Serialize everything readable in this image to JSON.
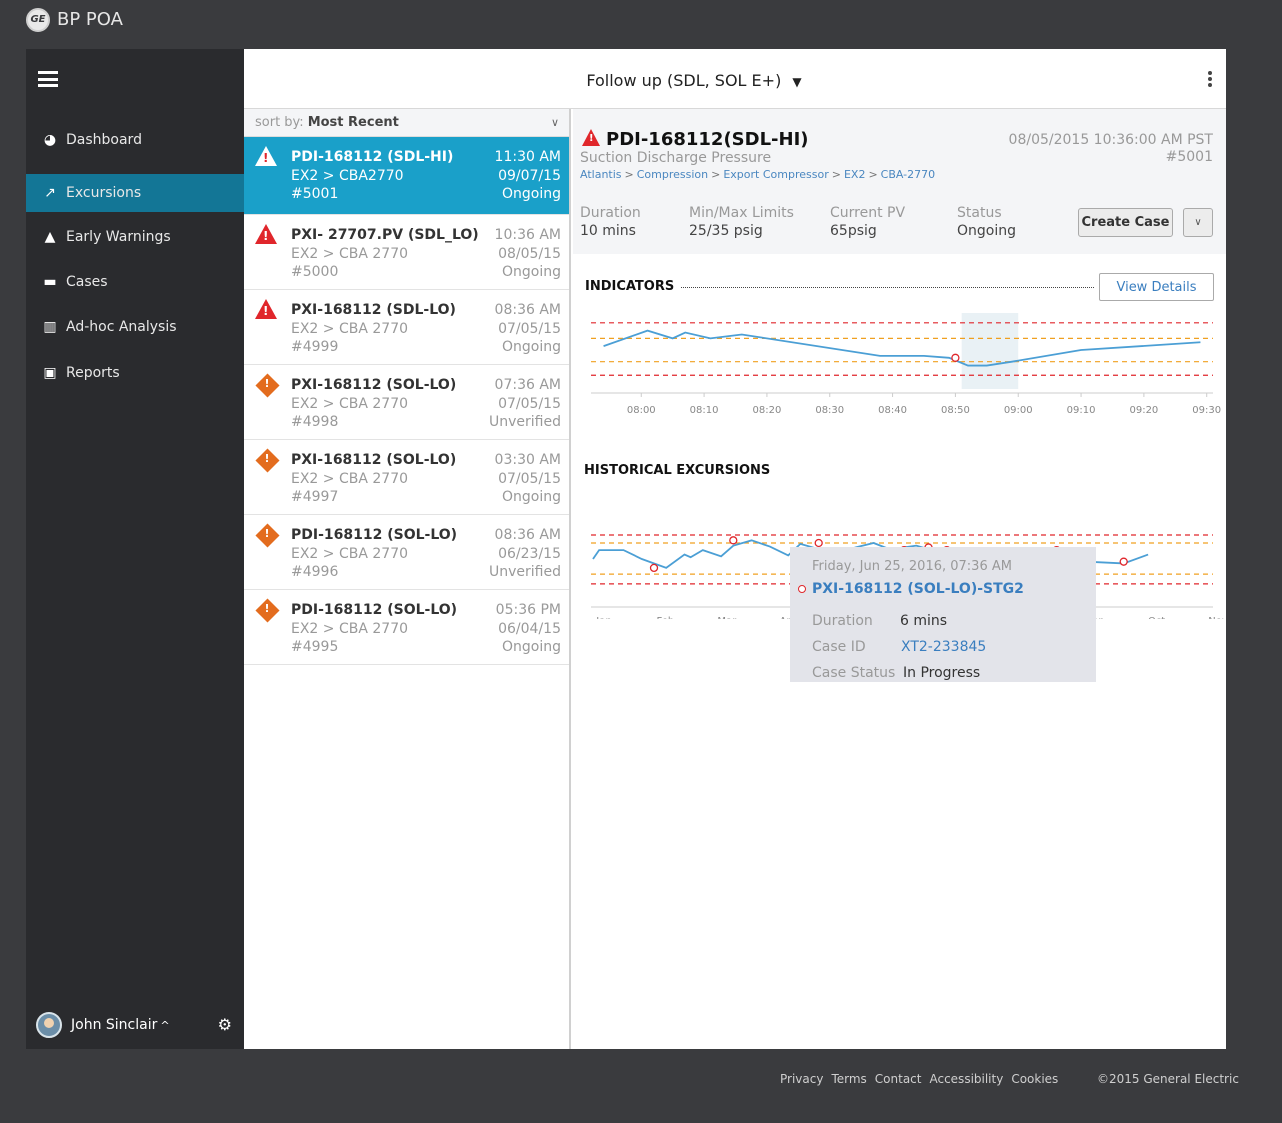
{
  "app": {
    "title": "BP POA",
    "logo_text": "GE"
  },
  "sidebar": {
    "items": [
      {
        "label": "Dashboard",
        "icon": "dashboard-icon",
        "glyph": "◕",
        "active": false
      },
      {
        "label": "Excursions",
        "icon": "line-chart-icon",
        "glyph": "↗",
        "active": true
      },
      {
        "label": "Early Warnings",
        "icon": "warning-icon",
        "glyph": "▲",
        "active": false
      },
      {
        "label": "Cases",
        "icon": "briefcase-icon",
        "glyph": "▬",
        "active": false
      },
      {
        "label": "Ad-hoc Analysis",
        "icon": "bar-chart-icon",
        "glyph": "▥",
        "active": false
      },
      {
        "label": "Reports",
        "icon": "report-icon",
        "glyph": "▣",
        "active": false
      }
    ],
    "user": {
      "name": "John Sinclair",
      "caret": "^"
    }
  },
  "header": {
    "title": "Follow up (SDL, SOL E+)",
    "caret": "▼"
  },
  "list": {
    "sort_prefix": "sort by:",
    "sort_value": "Most Recent",
    "items": [
      {
        "title": "PDI-168112 (SDL-HI)",
        "path": "EX2 > CBA2770",
        "id": "#5001",
        "time": "11:30 AM",
        "date": "09/07/15",
        "status": "Ongoing",
        "severity": "high"
      },
      {
        "title": "PXI- 27707.PV (SDL_LO)",
        "path": "EX2 > CBA 2770",
        "id": "#5000",
        "time": "10:36 AM",
        "date": "08/05/15",
        "status": "Ongoing",
        "severity": "high"
      },
      {
        "title": "PXI-168112 (SDL-LO)",
        "path": "EX2 > CBA 2770",
        "id": "#4999",
        "time": "08:36 AM",
        "date": "07/05/15",
        "status": "Ongoing",
        "severity": "high"
      },
      {
        "title": "PXI-168112 (SOL-LO)",
        "path": "EX2 > CBA 2770",
        "id": "#4998",
        "time": "07:36 AM",
        "date": "07/05/15",
        "status": "Unverified",
        "severity": "medium"
      },
      {
        "title": "PXI-168112 (SOL-LO)",
        "path": "EX2 > CBA 2770",
        "id": "#4997",
        "time": "03:30 AM",
        "date": "07/05/15",
        "status": "Ongoing",
        "severity": "medium"
      },
      {
        "title": "PDI-168112 (SOL-LO)",
        "path": "EX2 > CBA 2770",
        "id": "#4996",
        "time": "08:36 AM",
        "date": "06/23/15",
        "status": "Unverified",
        "severity": "medium"
      },
      {
        "title": "PDI-168112 (SOL-LO)",
        "path": "EX2 > CBA 2770",
        "id": "#4995",
        "time": "05:36 PM",
        "date": "06/04/15",
        "status": "Ongoing",
        "severity": "medium"
      }
    ]
  },
  "detail": {
    "title": "PDI-168112(SDL-HI)",
    "subtitle": "Suction Discharge Pressure",
    "breadcrumb": [
      "Atlantis",
      "Compression",
      "Export Compressor",
      "EX2",
      "CBA-2770"
    ],
    "breadcrumb_sep": ">",
    "datetime": "08/05/2015 10:36:00 AM PST",
    "number": "#5001",
    "stats": [
      {
        "label": "Duration",
        "value": "10 mins"
      },
      {
        "label": "Min/Max Limits",
        "value": "25/35 psig"
      },
      {
        "label": "Current PV",
        "value": "65psig"
      },
      {
        "label": "Status",
        "value": "Ongoing"
      }
    ],
    "create_case_label": "Create Case",
    "indicators_title": "INDICATORS",
    "view_details_label": "View Details",
    "historical_title": "HISTORICAL EXCURSIONS"
  },
  "tooltip": {
    "date": "Friday, Jun 25, 2016, 07:36 AM",
    "title": "PXI-168112 (SOL-LO)-STG2",
    "duration_label": "Duration",
    "duration_value": "6 mins",
    "case_id_label": "Case ID",
    "case_id_value": "XT2-233845",
    "case_status_label": "Case Status",
    "case_status_value": "In Progress"
  },
  "chart_data": [
    {
      "type": "line",
      "title": "INDICATORS",
      "x": [
        "07:54",
        "08:01",
        "08:05",
        "08:07",
        "08:11",
        "08:16",
        "08:38",
        "08:45",
        "08:49",
        "08:52",
        "08:55",
        "08:59",
        "09:10",
        "09:29"
      ],
      "values": [
        60,
        68,
        64,
        67,
        64,
        66,
        55,
        55,
        54,
        50,
        50,
        52,
        58,
        62
      ],
      "xticks": [
        "08:00",
        "08:10",
        "08:20",
        "08:30",
        "08:40",
        "08:50",
        "09:00",
        "09:10",
        "09:20",
        "09:30"
      ],
      "xlim": [
        "07:52",
        "09:31"
      ],
      "ylim": [
        40,
        75
      ],
      "upper_limit": 72,
      "upper_warning": 64,
      "lower_warning": 52,
      "lower_limit": 45,
      "highlight_range": [
        "08:51",
        "09:00"
      ],
      "markers": [
        {
          "x": "08:50",
          "y": 54
        }
      ]
    },
    {
      "type": "line",
      "title": "HISTORICAL EXCURSIONS",
      "x": [
        0.0,
        0.1,
        0.5,
        0.8,
        1.2,
        1.5,
        1.6,
        1.8,
        2.1,
        2.3,
        2.6,
        2.9,
        3.2,
        3.4,
        3.9,
        4.0,
        4.3,
        4.6,
        4.9,
        5.1,
        5.3,
        5.7,
        6.0,
        6.1,
        6.4,
        6.5,
        6.8,
        7.3,
        7.7,
        8.1,
        8.7,
        9.1
      ],
      "values": [
        45,
        55,
        55,
        45,
        35,
        50,
        47,
        55,
        48,
        60,
        66,
        59,
        49,
        62,
        52,
        50,
        58,
        63,
        55,
        58,
        60,
        52,
        47,
        45,
        55,
        52,
        55,
        52,
        42,
        42,
        40,
        50
      ],
      "xticks": [
        "Jan",
        "Feb",
        "Mar",
        "Apr",
        "May",
        "Jun",
        "Jul",
        "Aug",
        "Sep",
        "Oct",
        "Nov"
      ],
      "ylim": [
        0,
        90
      ],
      "upper_limit": 72,
      "upper_warning": 63,
      "lower_warning": 28,
      "lower_limit": 17,
      "markers": [
        {
          "x": 1.0,
          "y": 35
        },
        {
          "x": 2.3,
          "y": 66
        },
        {
          "x": 3.7,
          "y": 63
        },
        {
          "x": 5.1,
          "y": 55
        },
        {
          "x": 5.5,
          "y": 58
        },
        {
          "x": 5.8,
          "y": 55
        },
        {
          "x": 7.6,
          "y": 55
        },
        {
          "x": 8.7,
          "y": 42
        }
      ]
    }
  ],
  "footer": {
    "links": [
      "Privacy",
      "Terms",
      "Contact",
      "Accessibility",
      "Cookies"
    ],
    "copyright": "©2015 General Electric"
  }
}
